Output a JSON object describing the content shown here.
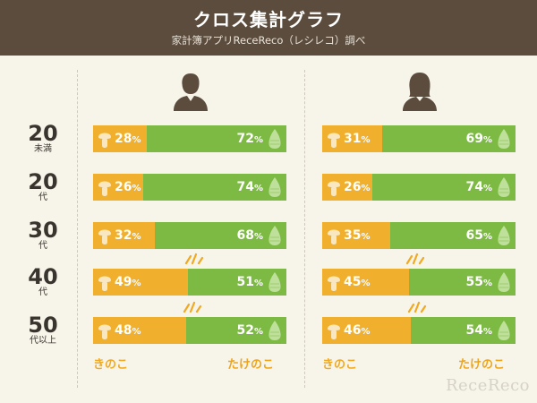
{
  "header": {
    "title": "クロス集計グラフ",
    "subtitle": "家計簿アプリReceReco（レシレコ）調べ"
  },
  "chart_data": {
    "type": "bar",
    "stacked": true,
    "categories": [
      {
        "num": "20",
        "sub": "未満"
      },
      {
        "num": "20",
        "sub": "代"
      },
      {
        "num": "30",
        "sub": "代"
      },
      {
        "num": "40",
        "sub": "代"
      },
      {
        "num": "50",
        "sub": "代以上"
      }
    ],
    "panels": [
      {
        "group_icon": "male-person-icon",
        "series": [
          {
            "name": "きのこ",
            "values": [
              28,
              26,
              32,
              49,
              48
            ]
          },
          {
            "name": "たけのこ",
            "values": [
              72,
              74,
              68,
              51,
              52
            ]
          }
        ]
      },
      {
        "group_icon": "female-person-icon",
        "series": [
          {
            "name": "きのこ",
            "values": [
              31,
              26,
              35,
              45,
              46
            ]
          },
          {
            "name": "たけのこ",
            "values": [
              69,
              74,
              65,
              55,
              54
            ]
          }
        ]
      }
    ],
    "value_suffix": "%",
    "highlight_rows": [
      3,
      4
    ],
    "xlim": [
      0,
      100
    ]
  },
  "footer": {
    "left_label": "きのこ",
    "right_label": "たけのこ"
  },
  "watermark": "ReceReco",
  "colors": {
    "kinoko": "#f0b02d",
    "takenoko": "#7dba44",
    "header": "#5b4c3e",
    "background": "#f7f4ea"
  }
}
